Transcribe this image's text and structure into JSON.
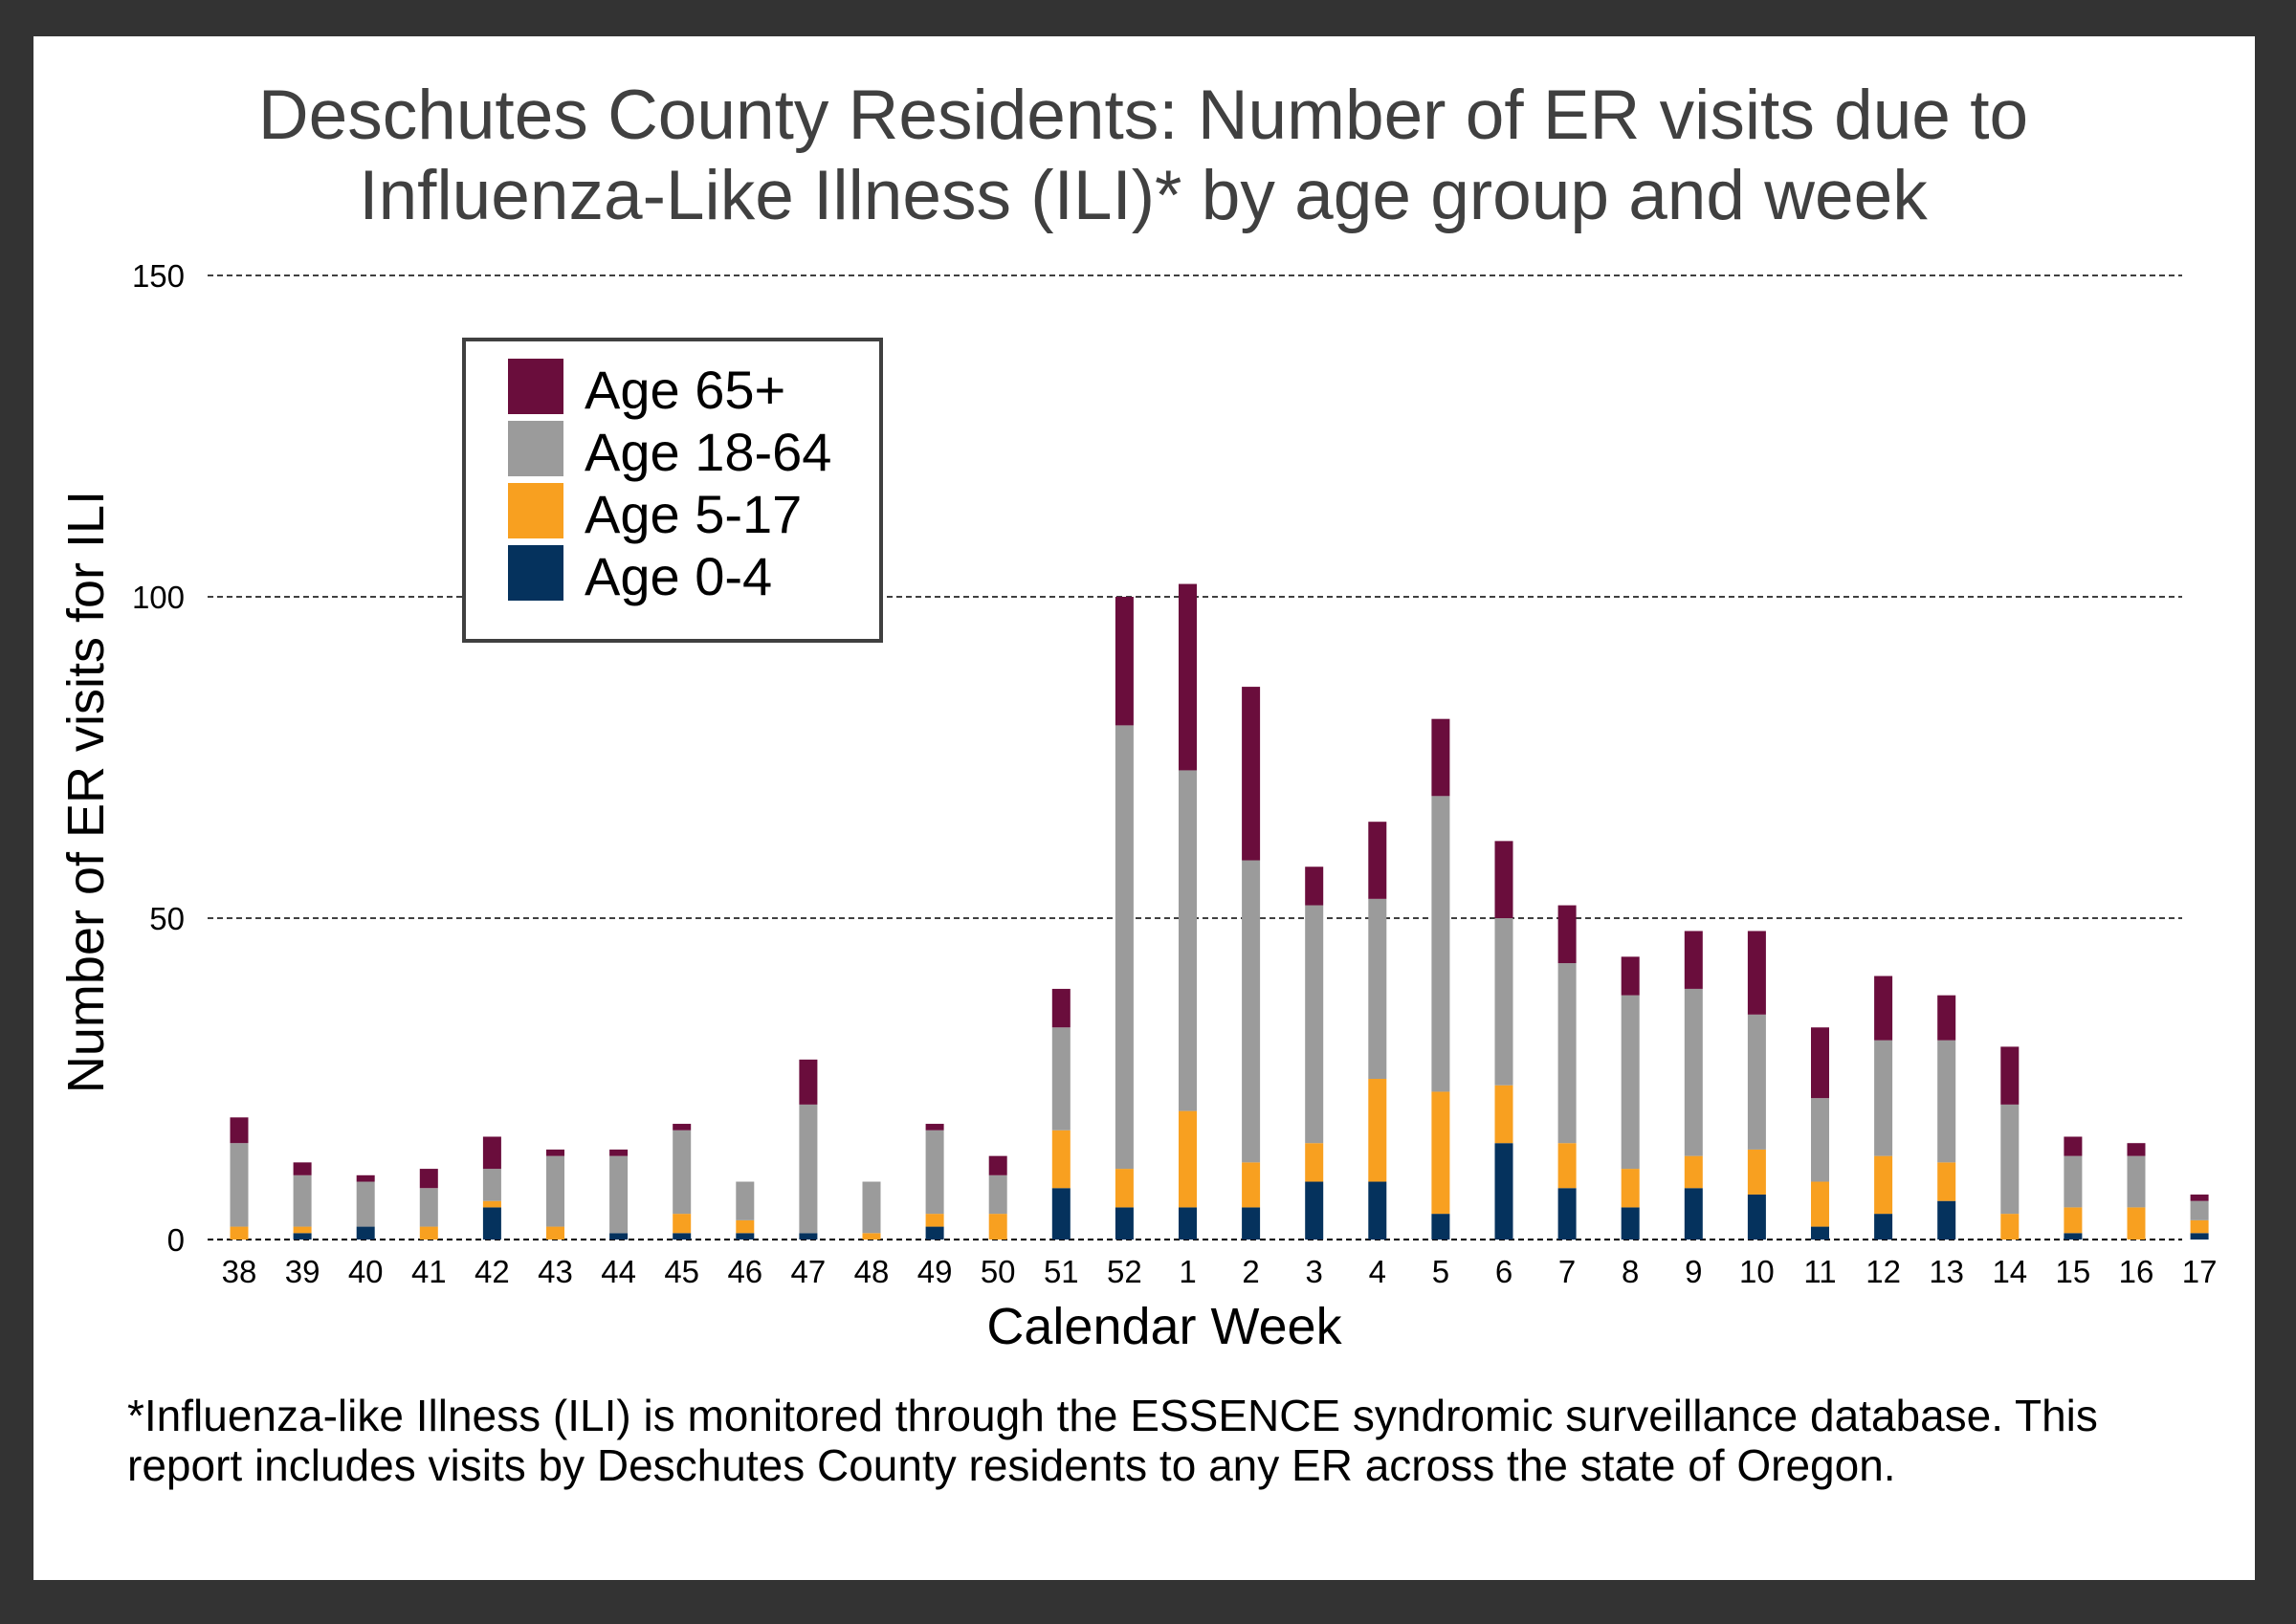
{
  "colors": {
    "age_0_4": "#05325d",
    "age_5_17": "#f8a020",
    "age_18_64": "#9b9b9b",
    "age_65_plus": "#6a0d3c",
    "frame": "#333333",
    "title": "#404040"
  },
  "chart_data": {
    "type": "bar",
    "stacked": true,
    "title_lines": [
      "Deschutes County Residents: Number of ER visits due to",
      "Influenza-Like Illness (ILI)* by age group and week"
    ],
    "xlabel": "Calendar Week",
    "ylabel": "Number of ER visits for ILI",
    "ylim": [
      0,
      150
    ],
    "yticks": [
      "0",
      "50",
      "100",
      "150"
    ],
    "grid": true,
    "legend_position": "top-left",
    "categories": [
      "38",
      "39",
      "40",
      "41",
      "42",
      "43",
      "44",
      "45",
      "46",
      "47",
      "48",
      "49",
      "50",
      "51",
      "52",
      "1",
      "2",
      "3",
      "4",
      "5",
      "6",
      "7",
      "8",
      "9",
      "10",
      "11",
      "12",
      "13",
      "14",
      "15",
      "16",
      "17"
    ],
    "series": [
      {
        "name": "Age 0-4",
        "color_key": "age_0_4",
        "values": [
          0,
          1,
          2,
          0,
          5,
          0,
          1,
          1,
          1,
          1,
          0,
          2,
          0,
          8,
          5,
          5,
          5,
          9,
          9,
          4,
          15,
          8,
          5,
          8,
          7,
          2,
          4,
          6,
          0,
          1,
          0,
          1
        ]
      },
      {
        "name": "Age 5-17",
        "color_key": "age_5_17",
        "values": [
          2,
          1,
          0,
          2,
          1,
          2,
          0,
          3,
          2,
          0,
          1,
          2,
          4,
          9,
          6,
          15,
          7,
          6,
          16,
          19,
          9,
          7,
          6,
          5,
          7,
          7,
          9,
          6,
          4,
          4,
          5,
          2
        ]
      },
      {
        "name": "Age 18-64",
        "color_key": "age_18_64",
        "values": [
          13,
          8,
          7,
          6,
          5,
          11,
          12,
          13,
          6,
          20,
          8,
          13,
          6,
          16,
          69,
          53,
          47,
          37,
          28,
          46,
          26,
          28,
          27,
          26,
          21,
          13,
          18,
          19,
          17,
          8,
          8,
          3
        ]
      },
      {
        "name": "Age 65+",
        "color_key": "age_65_plus",
        "values": [
          4,
          2,
          1,
          3,
          5,
          1,
          1,
          1,
          0,
          7,
          0,
          1,
          3,
          6,
          20,
          29,
          27,
          6,
          12,
          12,
          12,
          9,
          6,
          9,
          13,
          11,
          10,
          7,
          9,
          3,
          2,
          1
        ]
      }
    ],
    "legend_order": [
      "Age 65+",
      "Age 18-64",
      "Age 5-17",
      "Age 0-4"
    ]
  },
  "footnote": "*Influenza-like Illness (ILI) is monitored through the ESSENCE syndromic surveillance database. This report includes visits by Deschutes County residents to any ER across the state of Oregon."
}
